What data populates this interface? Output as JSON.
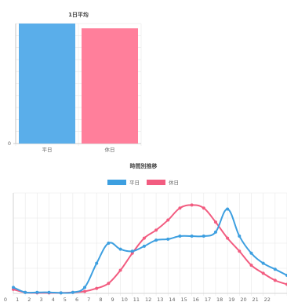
{
  "chart_data": [
    {
      "type": "bar",
      "title": "1日平均",
      "categories": [
        "平日",
        "休日"
      ],
      "values": [
        100,
        96
      ],
      "ylim": [
        0,
        100
      ],
      "y_tick_labels": [
        "0"
      ],
      "colors": [
        "#5aaeea",
        "#ff7f9b"
      ],
      "grid": true,
      "legend": false
    },
    {
      "type": "line",
      "title": "時間別推移",
      "x": [
        "0",
        "1",
        "2",
        "3",
        "4",
        "5",
        "6",
        "7",
        "8",
        "9",
        "10",
        "11",
        "12",
        "13",
        "14",
        "15",
        "16",
        "17",
        "18",
        "19",
        "20",
        "21",
        "22",
        "23"
      ],
      "x_tick_labels": [
        "0",
        "1",
        "2",
        "3",
        "4",
        "5",
        "6",
        "7",
        "8",
        "9",
        "10",
        "11",
        "12",
        "13",
        "14",
        "15",
        "16",
        "17",
        "18",
        "19",
        "20",
        "21",
        "22"
      ],
      "ylim": [
        0,
        100
      ],
      "series": [
        {
          "name": "平日",
          "color": "#3d9fe0",
          "values": [
            6,
            1,
            1,
            1,
            0.5,
            1,
            6,
            30,
            50,
            44,
            42,
            47,
            53,
            54,
            57,
            57,
            57,
            61,
            84,
            57,
            40,
            30,
            24,
            18
          ]
        },
        {
          "name": "休日",
          "color": "#f25c80",
          "values": [
            4,
            1,
            0.5,
            0.5,
            0.5,
            1,
            2,
            5,
            10,
            23,
            40,
            55,
            63,
            73,
            85,
            88,
            85,
            71,
            55,
            42,
            28,
            20,
            13,
            9
          ]
        }
      ],
      "legend_position": "top-center",
      "grid": true
    }
  ]
}
